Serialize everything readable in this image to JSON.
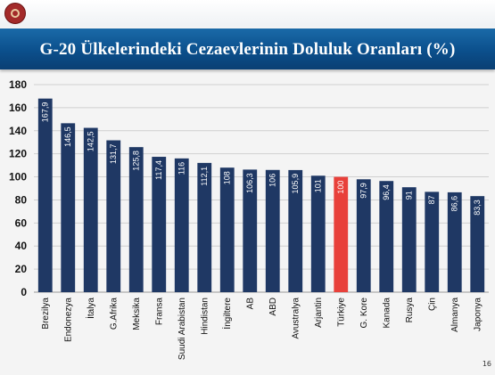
{
  "slide": {
    "title": "G-20 Ülkelerindeki Cezaevlerinin Doluluk Oranları (%)",
    "page_number": "16"
  },
  "colors": {
    "banner": "#0b4f8c",
    "bar": "#1f3864",
    "highlight_bar": "#e8403a",
    "grid": "#cfcfcf"
  },
  "icons": {
    "logo": "ministry-emblem-icon"
  },
  "chart_data": {
    "type": "bar",
    "title": "G-20 Ülkelerindeki Cezaevlerinin Doluluk Oranları (%)",
    "categories": [
      "Brezilya",
      "Endonezya",
      "İtalya",
      "G.Afrika",
      "Meksika",
      "Fransa",
      "Suudi Arabistan",
      "Hindistan",
      "İngiltere",
      "AB",
      "ABD",
      "Avustralya",
      "Arjantin",
      "Türkiye",
      "G. Kore",
      "Kanada",
      "Rusya",
      "Çin",
      "Almanya",
      "Japonya"
    ],
    "values": [
      167.9,
      146.5,
      142.5,
      131.7,
      125.8,
      117.4,
      116,
      112.1,
      108,
      106.3,
      106,
      105.9,
      101,
      100,
      97.9,
      96.4,
      91,
      87,
      86.6,
      83.3
    ],
    "value_labels": [
      "167,9",
      "146,5",
      "142,5",
      "131,7",
      "125,8",
      "117,4",
      "116",
      "112,1",
      "108",
      "106,3",
      "106",
      "105,9",
      "101",
      "100",
      "97,9",
      "96,4",
      "91",
      "87",
      "86,6",
      "83,3"
    ],
    "highlight_category": "Türkiye",
    "ylim": [
      0,
      180
    ],
    "yticks": [
      0,
      20,
      40,
      60,
      80,
      100,
      120,
      140,
      160,
      180
    ],
    "xlabel": "",
    "ylabel": "",
    "grid": true,
    "legend": "none"
  }
}
